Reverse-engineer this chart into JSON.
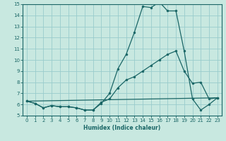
{
  "xlabel": "Humidex (Indice chaleur)",
  "xlim": [
    -0.5,
    23.5
  ],
  "ylim": [
    5,
    15
  ],
  "xticks": [
    0,
    1,
    2,
    3,
    4,
    5,
    6,
    7,
    8,
    9,
    10,
    11,
    12,
    13,
    14,
    15,
    16,
    17,
    18,
    19,
    20,
    21,
    22,
    23
  ],
  "yticks": [
    5,
    6,
    7,
    8,
    9,
    10,
    11,
    12,
    13,
    14,
    15
  ],
  "bg_color": "#c8e8e0",
  "grid_color": "#99cccc",
  "line_color": "#1a6666",
  "line1_x": [
    0,
    1,
    2,
    3,
    4,
    5,
    6,
    7,
    8,
    9,
    10,
    11,
    12,
    13,
    14,
    15,
    16,
    17,
    18,
    19,
    20,
    21,
    22,
    23
  ],
  "line1_y": [
    6.3,
    6.1,
    5.7,
    5.9,
    5.8,
    5.8,
    5.7,
    5.5,
    5.5,
    6.1,
    7.0,
    9.2,
    10.5,
    12.5,
    14.8,
    14.7,
    15.2,
    14.4,
    14.4,
    10.8,
    6.5,
    5.5,
    6.0,
    6.6
  ],
  "line2_x": [
    0,
    1,
    2,
    3,
    4,
    5,
    6,
    7,
    8,
    9,
    10,
    11,
    12,
    13,
    14,
    15,
    16,
    17,
    18,
    19,
    20,
    21,
    22,
    23
  ],
  "line2_y": [
    6.3,
    6.1,
    5.7,
    5.9,
    5.8,
    5.8,
    5.7,
    5.5,
    5.5,
    6.2,
    6.5,
    7.5,
    8.2,
    8.5,
    9.0,
    9.5,
    10.0,
    10.5,
    10.8,
    9.0,
    7.9,
    8.0,
    6.5,
    6.6
  ],
  "line3_x": [
    0,
    23
  ],
  "line3_y": [
    6.3,
    6.6
  ]
}
